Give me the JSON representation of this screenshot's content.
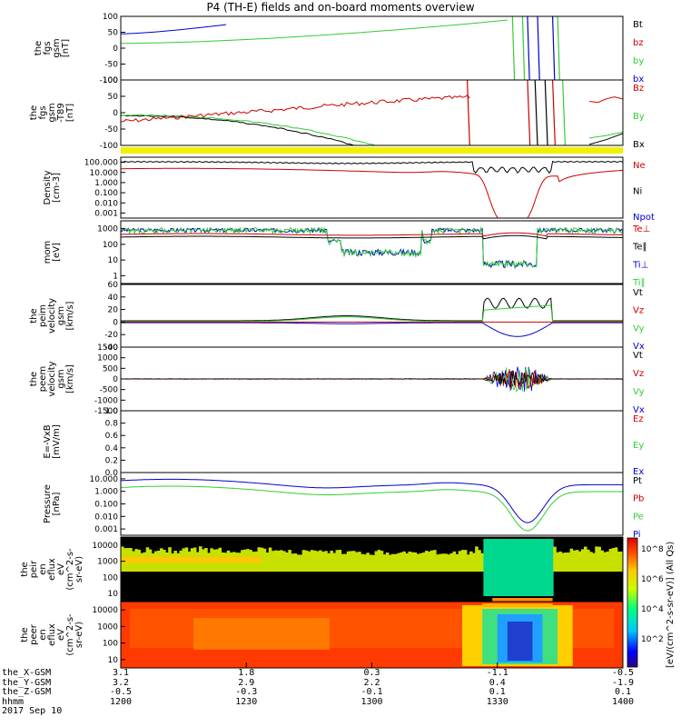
{
  "title": "P4 (TH-E) fields and on-board moments overview",
  "panels": [
    {
      "id": "fgs-gsm",
      "ylabel": [
        "the",
        "fgs",
        "gsm",
        "[nT]"
      ],
      "ticks": [
        "100",
        "50",
        "0",
        "-50",
        "-100"
      ],
      "legend": [
        {
          "text": "Bt",
          "color": "#000000"
        },
        {
          "text": "bz",
          "color": "#cc0000"
        },
        {
          "text": "by",
          "color": "#33cc33"
        },
        {
          "text": "bx",
          "color": "#0000cc"
        }
      ]
    },
    {
      "id": "fgs-gsm-t89",
      "ylabel": [
        "the",
        "fgs",
        "gsm",
        "-T89",
        "[nT]"
      ],
      "ticks": [
        "100",
        "50",
        "0",
        "-50",
        "-100"
      ],
      "legend": [
        {
          "text": "Bz",
          "color": "#cc0000"
        },
        {
          "text": "By",
          "color": "#33cc33"
        },
        {
          "text": "Bx",
          "color": "#000000"
        }
      ]
    },
    {
      "id": "density",
      "ylabel": [
        "Density",
        "[cm-3]"
      ],
      "ticks": [
        "100.000",
        "10.000",
        "1.000",
        "0.100",
        "0.010",
        "0.001"
      ],
      "legend": [
        {
          "text": "Ne",
          "color": "#cc0000"
        },
        {
          "text": "Ni",
          "color": "#000000"
        },
        {
          "text": "Npot",
          "color": "#0000cc"
        }
      ]
    },
    {
      "id": "temperature",
      "ylabel": [
        "mom",
        "[eV]"
      ],
      "ticks": [
        "1000",
        "100",
        "10",
        "1"
      ],
      "legend": [
        {
          "text": "Te⊥",
          "color": "#cc0000"
        },
        {
          "text": "Te∥",
          "color": "#000000"
        },
        {
          "text": "Ti⊥",
          "color": "#0000cc"
        },
        {
          "text": "Ti∥",
          "color": "#33cc33"
        }
      ]
    },
    {
      "id": "peim-velocity",
      "ylabel": [
        "the",
        "peim",
        "velocity",
        "gsm",
        "[km/s]"
      ],
      "ticks": [
        "60",
        "40",
        "20",
        "0",
        "-20",
        "-40"
      ],
      "legend": [
        {
          "text": "Vt",
          "color": "#000000"
        },
        {
          "text": "Vz",
          "color": "#cc0000"
        },
        {
          "text": "Vy",
          "color": "#33cc33"
        },
        {
          "text": "Vx",
          "color": "#0000cc"
        }
      ]
    },
    {
      "id": "peem-velocity",
      "ylabel": [
        "the",
        "peem",
        "velocity",
        "gsm",
        "[km/s]"
      ],
      "ticks": [
        "1500",
        "1000",
        "500",
        "0",
        "-500",
        "-1000",
        "-1500"
      ],
      "legend": [
        {
          "text": "Vt",
          "color": "#000000"
        },
        {
          "text": "Vz",
          "color": "#cc0000"
        },
        {
          "text": "Vy",
          "color": "#33cc33"
        },
        {
          "text": "Vx",
          "color": "#0000cc"
        }
      ]
    },
    {
      "id": "efield",
      "ylabel": [
        "E=-VxB",
        "[mV/m]"
      ],
      "ticks": [
        "1.0",
        "0.8",
        "0.6",
        "0.4",
        "0.2",
        "0.0"
      ],
      "legend": [
        {
          "text": "Ez",
          "color": "#cc0000"
        },
        {
          "text": "Ey",
          "color": "#33cc33"
        },
        {
          "text": "Ex",
          "color": "#0000cc"
        }
      ]
    },
    {
      "id": "pressure",
      "ylabel": [
        "Pressure",
        "[nPa]"
      ],
      "ticks": [
        "10.000",
        "1.000",
        "0.100",
        "0.010",
        "0.001"
      ],
      "legend": [
        {
          "text": "Pt",
          "color": "#000000"
        },
        {
          "text": "Pb",
          "color": "#cc0000"
        },
        {
          "text": "Pe",
          "color": "#33cc33"
        },
        {
          "text": "Pi",
          "color": "#0000cc"
        }
      ]
    },
    {
      "id": "peir-eflux",
      "ylabel": [
        "the",
        "peir",
        "en",
        "eflux",
        "eV",
        "(cm^2-s-",
        "sr-eV)"
      ],
      "ticks": [
        "10000",
        "1000",
        "100",
        "10"
      ],
      "legend": []
    },
    {
      "id": "peer-eflux",
      "ylabel": [
        "the",
        "peer",
        "en",
        "eflux",
        "eV",
        "(cm^2-s-",
        "sr-eV)"
      ],
      "ticks": [
        "10000",
        "1000",
        "100",
        "10"
      ],
      "legend": []
    }
  ],
  "colorbar": {
    "label": "[eV/(cm^2-s-sr-eV)] (All Qs)",
    "ticks": [
      "10^8",
      "10^6",
      "10^4",
      "10^2"
    ]
  },
  "footer": {
    "row_labels": [
      "the_X-GSM",
      "the_Y-GSM",
      "the_Z-GSM",
      "hhmm",
      "2017 Sep 10"
    ],
    "columns": [
      {
        "x_gsm": "3.1",
        "y_gsm": "3.2",
        "z_gsm": "-0.5",
        "hhmm": "1200"
      },
      {
        "x_gsm": "1.8",
        "y_gsm": "2.9",
        "z_gsm": "-0.3",
        "hhmm": "1230"
      },
      {
        "x_gsm": "0.3",
        "y_gsm": "2.2",
        "z_gsm": "-0.1",
        "hhmm": "1300"
      },
      {
        "x_gsm": "-1.1",
        "y_gsm": "0.4",
        "z_gsm": "0.1",
        "hhmm": "1330"
      },
      {
        "x_gsm": "-0.5",
        "y_gsm": "-1.9",
        "z_gsm": "0.1",
        "hhmm": "1400"
      }
    ]
  },
  "chart_data": {
    "type": "line",
    "title": "P4 (TH-E) fields and on-board moments overview",
    "x_label": "hhmm",
    "x_ticks": [
      "1200",
      "1230",
      "1300",
      "1330",
      "1400"
    ],
    "series_summary": {
      "fgs_bx": {
        "units": "nT",
        "note": "rises from ~45 at 1200 to above 100 by ~1225"
      },
      "fgs_by": {
        "units": "nT",
        "note": "~15 at 1200 rising to ~90 by 1320"
      },
      "density_Ne": {
        "units": "cm-3",
        "approx": [
          20,
          30,
          20,
          10,
          0.5,
          0.0005,
          1,
          15
        ]
      },
      "density_Ni": {
        "units": "cm-3",
        "approx": [
          100,
          100,
          80,
          80,
          30,
          40,
          60,
          100
        ]
      },
      "pressure_Pi": {
        "units": "nPa",
        "approx": [
          10,
          15,
          3,
          3,
          5,
          0.004,
          10,
          10
        ]
      },
      "pressure_Pe": {
        "units": "nPa",
        "approx": [
          2,
          3,
          0.8,
          0.8,
          1.2,
          0.001,
          2,
          1.5
        ]
      }
    }
  }
}
